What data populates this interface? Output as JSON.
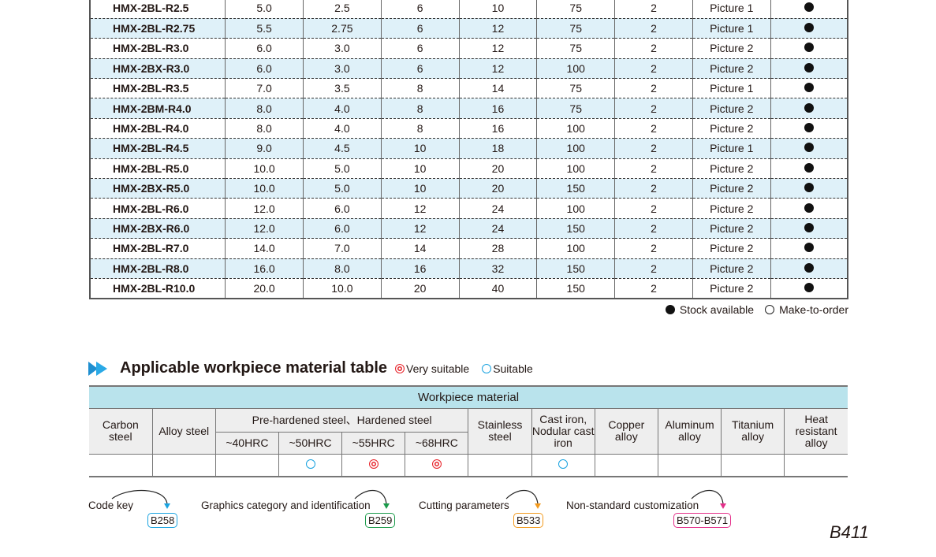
{
  "spec_table": {
    "rows": [
      [
        "HMX-2BL-R2.5",
        "5.0",
        "2.5",
        "6",
        "10",
        "75",
        "2",
        "Picture 1",
        "stock"
      ],
      [
        "HMX-2BL-R2.75",
        "5.5",
        "2.75",
        "6",
        "12",
        "75",
        "2",
        "Picture 1",
        "stock"
      ],
      [
        "HMX-2BL-R3.0",
        "6.0",
        "3.0",
        "6",
        "12",
        "75",
        "2",
        "Picture 2",
        "stock"
      ],
      [
        "HMX-2BX-R3.0",
        "6.0",
        "3.0",
        "6",
        "12",
        "100",
        "2",
        "Picture 2",
        "stock"
      ],
      [
        "HMX-2BL-R3.5",
        "7.0",
        "3.5",
        "8",
        "14",
        "75",
        "2",
        "Picture 1",
        "stock"
      ],
      [
        "HMX-2BM-R4.0",
        "8.0",
        "4.0",
        "8",
        "16",
        "75",
        "2",
        "Picture 2",
        "stock"
      ],
      [
        "HMX-2BL-R4.0",
        "8.0",
        "4.0",
        "8",
        "16",
        "100",
        "2",
        "Picture 2",
        "stock"
      ],
      [
        "HMX-2BL-R4.5",
        "9.0",
        "4.5",
        "10",
        "18",
        "100",
        "2",
        "Picture 1",
        "stock"
      ],
      [
        "HMX-2BL-R5.0",
        "10.0",
        "5.0",
        "10",
        "20",
        "100",
        "2",
        "Picture 2",
        "stock"
      ],
      [
        "HMX-2BX-R5.0",
        "10.0",
        "5.0",
        "10",
        "20",
        "150",
        "2",
        "Picture 2",
        "stock"
      ],
      [
        "HMX-2BL-R6.0",
        "12.0",
        "6.0",
        "12",
        "24",
        "100",
        "2",
        "Picture 2",
        "stock"
      ],
      [
        "HMX-2BX-R6.0",
        "12.0",
        "6.0",
        "12",
        "24",
        "150",
        "2",
        "Picture 2",
        "stock"
      ],
      [
        "HMX-2BL-R7.0",
        "14.0",
        "7.0",
        "14",
        "28",
        "100",
        "2",
        "Picture 2",
        "stock"
      ],
      [
        "HMX-2BL-R8.0",
        "16.0",
        "8.0",
        "16",
        "32",
        "150",
        "2",
        "Picture 2",
        "stock"
      ],
      [
        "HMX-2BL-R10.0",
        "20.0",
        "10.0",
        "20",
        "40",
        "150",
        "2",
        "Picture 2",
        "stock"
      ]
    ]
  },
  "legend": {
    "stock": "Stock available",
    "order": "Make-to-order"
  },
  "material": {
    "title": "Applicable workpiece material table",
    "very_suitable": "Very suitable",
    "suitable": "Suitable",
    "header": "Workpiece material",
    "carbon": "Carbon steel",
    "alloy": "Alloy steel",
    "hardened": "Pre-hardened steel、Hardened steel",
    "hrc": [
      "~40HRC",
      "~50HRC",
      "~55HRC",
      "~68HRC"
    ],
    "stainless": "Stainless steel",
    "cast": "Cast iron, Nodular cast iron",
    "copper": "Copper alloy",
    "aluminum": "Aluminum alloy",
    "titanium": "Titanium alloy",
    "heat": "Heat resistant alloy",
    "ratings": [
      "",
      "",
      "",
      "suitable",
      "very",
      "very",
      "",
      "suitable",
      "",
      "",
      "",
      ""
    ]
  },
  "refs": [
    {
      "label": "Code key",
      "page": "B258",
      "color": "#1aa3e0"
    },
    {
      "label": "Graphics category and identification",
      "page": "B259",
      "color": "#1a9a4a"
    },
    {
      "label": "Cutting parameters",
      "page": "B533",
      "color": "#f39a1e"
    },
    {
      "label": "Non-standard customization",
      "page": "B570-B571",
      "color": "#e4308a"
    }
  ],
  "page_number": "B411"
}
